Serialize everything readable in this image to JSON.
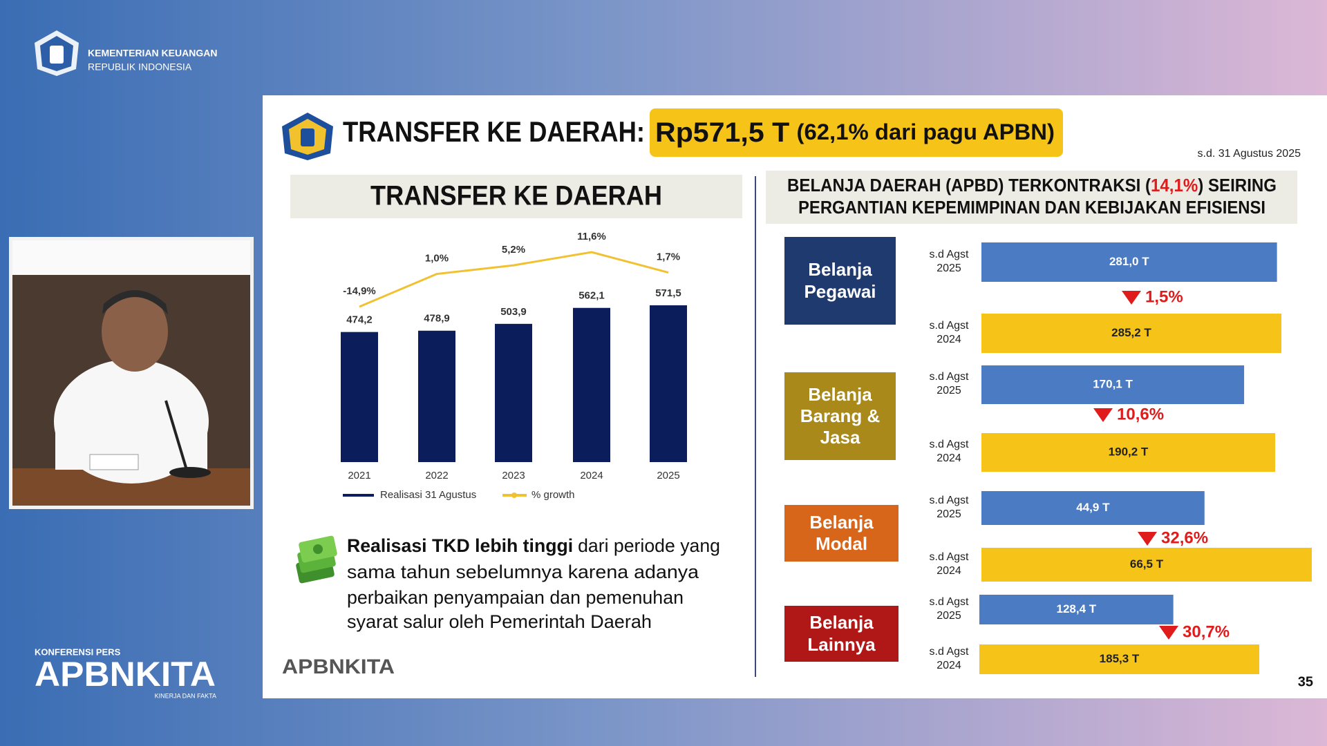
{
  "header": {
    "ministry": "KEMENTERIAN KEUANGAN",
    "country": "REPUBLIK INDONESIA"
  },
  "event": {
    "label": "KONFERENSI PERS",
    "brand": "APBNKITA",
    "tagline": "KINERJA DAN FAKTA"
  },
  "slide": {
    "title": "TRANSFER KE DAERAH:",
    "highlight": "Rp571,5 T",
    "highlight_note": "(62,1% dari pagu APBN)",
    "date": "s.d. 31 Agustus 2025",
    "note": {
      "bold": "Realisasi TKD lebih tinggi",
      "lines": [
        "dari periode yang",
        "sama tahun sebelumnya karena adanya",
        "perbaikan penyampaian dan pemenuhan",
        "syarat salur oleh Pemerintah Daerah"
      ]
    },
    "footer_logo": "APBNKITA",
    "page": "35"
  },
  "chart_data": [
    {
      "type": "bar",
      "title": "TRANSFER KE DAERAH",
      "categories": [
        "2021",
        "2022",
        "2023",
        "2024",
        "2025"
      ],
      "series": [
        {
          "name": "Realisasi 31 Agustus",
          "color": "#0b1d5a",
          "values": [
            474.2,
            478.9,
            503.9,
            562.1,
            571.5
          ],
          "value_labels": [
            "474,2",
            "478,9",
            "503,9",
            "562,1",
            "571,5"
          ]
        },
        {
          "name": "% growth",
          "type": "line",
          "axis": "y2",
          "color": "#f0c232",
          "values": [
            -14.9,
            1.0,
            5.2,
            11.6,
            1.7
          ],
          "value_labels": [
            "-14,9%",
            "1,0%",
            "5,2%",
            "11,6%",
            "1,7%"
          ]
        }
      ]
    },
    {
      "type": "barh",
      "title": {
        "before": "BELANJA DAERAH (APBD) TERKONTRAKSI (",
        "highlight": "14,1%",
        "after": ") SEIRING",
        "line2": "PERGANTIAN KEPEMIMPINAN DAN KEBIJAKAN EFISIENSI"
      },
      "categories": [
        "Belanja Pegawai",
        "Belanja Barang & Jasa",
        "Belanja Modal",
        "Belanja Lainnya"
      ],
      "category_colors": [
        "#1f3a6e",
        "#a8891a",
        "#d8661a",
        "#b01818"
      ],
      "series": [
        {
          "name": "s.d Agst 2025",
          "color": "#4a7bc3",
          "values": [
            281.0,
            170.1,
            44.9,
            128.4
          ],
          "value_labels": [
            "281,0 T",
            "170,1 T",
            "44,9 T",
            "128,4 T"
          ]
        },
        {
          "name": "s.d Agst 2024",
          "color": "#f6c419",
          "values": [
            285.2,
            190.2,
            66.5,
            185.3
          ],
          "value_labels": [
            "285,2 T",
            "190,2 T",
            "66,5 T",
            "185,3 T"
          ]
        }
      ],
      "change": {
        "direction": "down",
        "color": "#e01b1b",
        "values": [
          1.5,
          10.6,
          32.6,
          30.7
        ],
        "value_labels": [
          "1,5%",
          "10,6%",
          "32,6%",
          "30,7%"
        ]
      }
    }
  ]
}
